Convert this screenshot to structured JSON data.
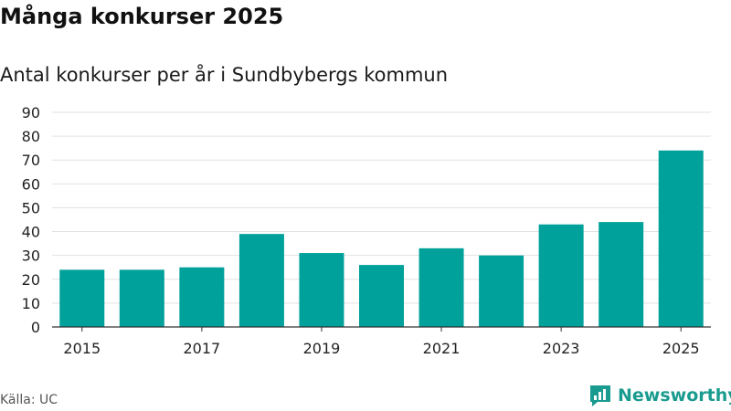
{
  "header": {
    "title": "Många konkurser 2025",
    "subtitle": "Antal konkurser per år i Sundbybergs kommun"
  },
  "footer": {
    "source": "Källa: UC",
    "brand": "Newsworthy"
  },
  "colors": {
    "bar": "#00a19a",
    "grid": "#e2e2e2",
    "axis": "#333333",
    "brand": "#1a9b8f"
  },
  "chart_data": {
    "type": "bar",
    "title": "Många konkurser 2025",
    "subtitle": "Antal konkurser per år i Sundbybergs kommun",
    "xlabel": "",
    "ylabel": "",
    "categories": [
      "2015",
      "2016",
      "2017",
      "2018",
      "2019",
      "2020",
      "2021",
      "2022",
      "2023",
      "2024",
      "2025"
    ],
    "values": [
      24,
      24,
      25,
      39,
      31,
      26,
      33,
      30,
      43,
      44,
      74
    ],
    "ylim": [
      0,
      90
    ],
    "yticks": [
      "0",
      "10",
      "20",
      "30",
      "40",
      "50",
      "60",
      "70",
      "80",
      "90"
    ],
    "xticks": [
      "2015",
      "2017",
      "2019",
      "2021",
      "2023",
      "2025"
    ],
    "grid": true,
    "legend": "none"
  }
}
